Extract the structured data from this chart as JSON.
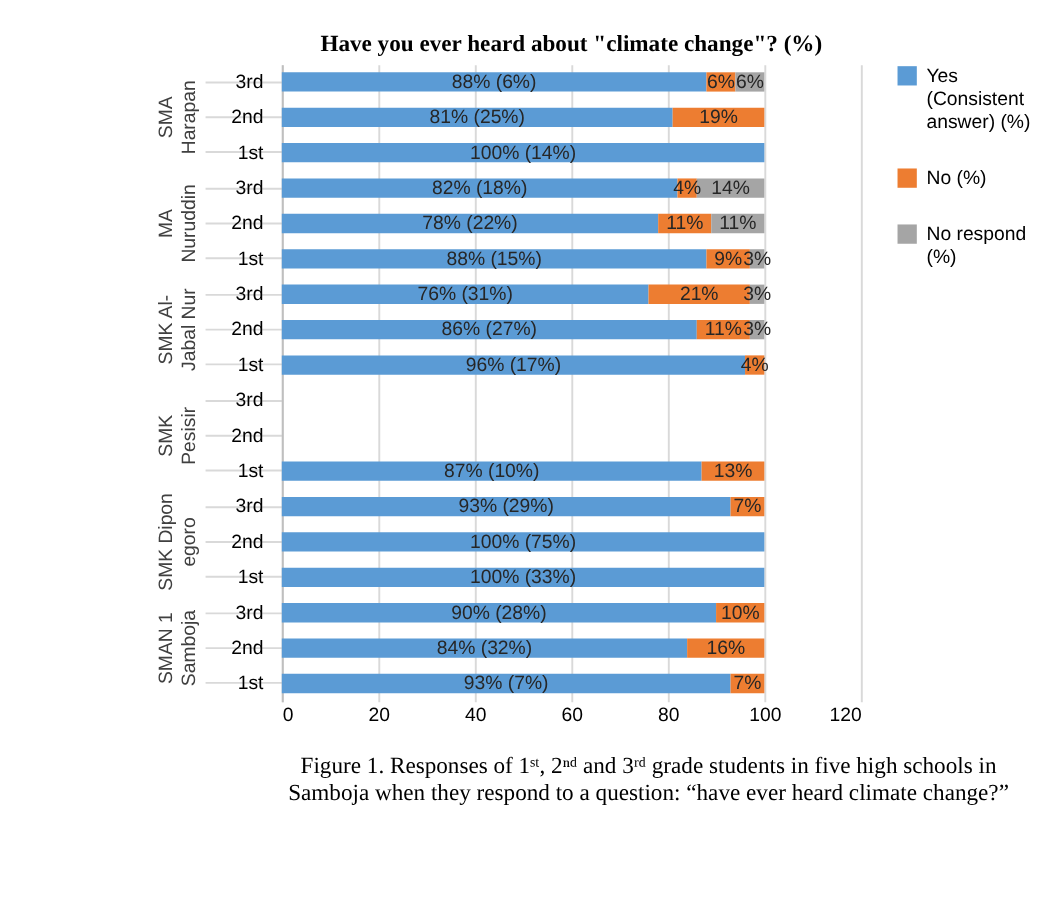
{
  "chart_data": {
    "type": "bar",
    "orientation": "horizontal",
    "stacked": true,
    "title": "Have you ever heard about \"climate change\"? (%)",
    "categories": [
      "3rd",
      "2nd",
      "1st",
      "3rd",
      "2nd",
      "1st",
      "3rd",
      "2nd",
      "1st",
      "3rd",
      "2nd",
      "1st",
      "3rd",
      "2nd",
      "1st",
      "3rd",
      "2nd",
      "1st"
    ],
    "series": [
      {
        "name": "Yes (Consistent answer) (%)",
        "color": "#5b9bd5",
        "values": [
          88,
          81,
          100,
          82,
          78,
          88,
          76,
          86,
          96,
          null,
          null,
          87,
          93,
          100,
          100,
          90,
          84,
          93
        ],
        "value_labels": [
          "88% (6%)",
          "81% (25%)",
          "100% (14%)",
          "82% (18%)",
          "78% (22%)",
          "88% (15%)",
          "76% (31%)",
          "86% (27%)",
          "96% (17%)",
          null,
          null,
          "87% (10%)",
          "93% (29%)",
          "100% (75%)",
          "100% (33%)",
          "90% (28%)",
          "84% (32%)",
          "93% (7%)"
        ]
      },
      {
        "name": "No (%)",
        "color": "#ed7d31",
        "values": [
          6,
          19,
          null,
          4,
          11,
          9,
          21,
          11,
          4,
          null,
          null,
          13,
          7,
          null,
          null,
          10,
          16,
          7
        ],
        "value_labels": [
          "6%",
          "19%",
          null,
          "4%",
          "11%",
          "9%",
          "21%",
          "11%",
          "4%",
          null,
          null,
          "13%",
          "7%",
          null,
          null,
          "10%",
          "16%",
          "7%"
        ]
      },
      {
        "name": "No respond (%)",
        "color": "#a5a5a5",
        "values": [
          6,
          null,
          null,
          14,
          11,
          3,
          3,
          3,
          null,
          null,
          null,
          null,
          null,
          null,
          null,
          null,
          null,
          null
        ],
        "value_labels": [
          "6%",
          null,
          null,
          "14%",
          "11%",
          "3%",
          "3%",
          "3%",
          null,
          null,
          null,
          null,
          null,
          null,
          null,
          null,
          null,
          null
        ]
      }
    ],
    "xlim": [
      0,
      120
    ],
    "xticks": [
      0,
      20,
      40,
      60,
      80,
      100,
      120
    ],
    "grid": "x",
    "legend": "right",
    "annotations": [
      "SMA Harapan",
      "MA Nuruddin",
      "SMK Al-Jabal Nur",
      "SMK Pesisir",
      "SMK Diponegoro",
      "SMAN 1 Samboja",
      "Figure 1. Responses of 1ˢᵗ, 2ⁿᵈ and 3ʳᵈ grade students in five high schools in Samboja when they respond to a question: “have ever heard climate change?”"
    ]
  }
}
